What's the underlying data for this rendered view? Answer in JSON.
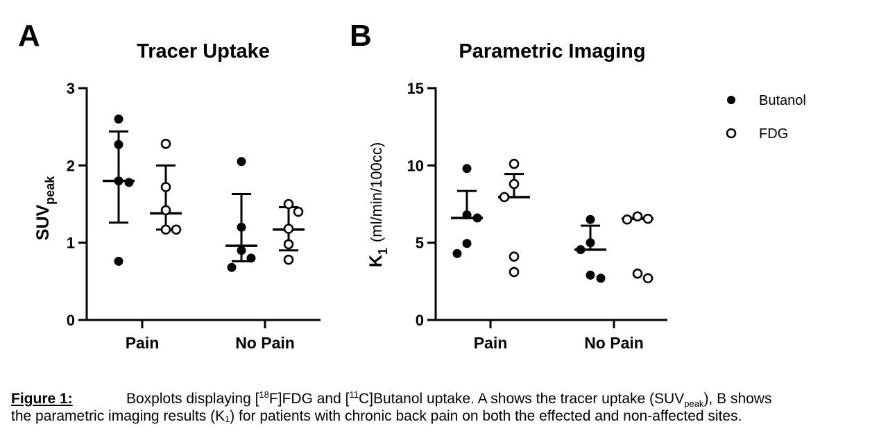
{
  "panels": [
    {
      "letter": "A",
      "title": "Tracer Uptake",
      "ylabel_main": "SUV",
      "ylabel_sub": "peak",
      "ylabel_unit": "",
      "yticks": [
        "0",
        "1",
        "2",
        "3"
      ],
      "categories": [
        "Pain",
        "No Pain"
      ]
    },
    {
      "letter": "B",
      "title": "Parametric Imaging",
      "ylabel_main": "K",
      "ylabel_sub": "1",
      "ylabel_unit": "(ml/min/100cc)",
      "yticks": [
        "0",
        "5",
        "10",
        "15"
      ],
      "categories": [
        "Pain",
        "No Pain"
      ]
    }
  ],
  "legend": {
    "butanol": "Butanol",
    "fdg": "FDG"
  },
  "caption": {
    "label": "Figure 1:",
    "t1": "Boxplots displaying [",
    "sup18": "18",
    "t2": "F]FDG and [",
    "sup11": "11",
    "t3": "C]Butanol",
    "t4": " uptake. A shows the tracer uptake (SUV",
    "sub_peak": "peak",
    "t5": "), B shows",
    "line2": "the parametric imaging results (K₁) for patients with chronic back pain on both the effected and non-affected sites."
  },
  "chart_data": [
    {
      "type": "scatter",
      "title": "Tracer Uptake",
      "ylabel": "SUVpeak",
      "ylim": [
        0,
        3
      ],
      "categories": [
        "Pain",
        "No Pain"
      ],
      "legend": "top-right",
      "series": [
        {
          "name": "Butanol",
          "marker": "filled",
          "groups": [
            {
              "category": "Pain",
              "points": [
                2.6,
                2.27,
                1.8,
                1.78,
                0.76
              ],
              "mean": 1.8,
              "error": [
                1.26,
                2.44
              ]
            },
            {
              "category": "No Pain",
              "points": [
                2.05,
                1.2,
                0.9,
                0.8,
                0.68
              ],
              "mean": 0.96,
              "error": [
                0.76,
                1.63
              ]
            }
          ]
        },
        {
          "name": "FDG",
          "marker": "open",
          "groups": [
            {
              "category": "Pain",
              "points": [
                2.28,
                1.72,
                1.42,
                1.17,
                1.17
              ],
              "mean": 1.38,
              "error": [
                1.17,
                2.0
              ]
            },
            {
              "category": "No Pain",
              "points": [
                1.5,
                1.4,
                1.18,
                0.98,
                0.78
              ],
              "mean": 1.17,
              "error": [
                0.9,
                1.46
              ]
            }
          ]
        }
      ]
    },
    {
      "type": "scatter",
      "title": "Parametric Imaging",
      "ylabel": "K1 (ml/min/100cc)",
      "ylim": [
        0,
        15
      ],
      "categories": [
        "Pain",
        "No Pain"
      ],
      "legend": "top-right",
      "series": [
        {
          "name": "Butanol",
          "marker": "filled",
          "groups": [
            {
              "category": "Pain",
              "points": [
                9.8,
                6.8,
                6.6,
                4.95,
                4.3
              ],
              "mean": 6.6,
              "error": [
                6.6,
                8.35
              ]
            },
            {
              "category": "No Pain",
              "points": [
                6.5,
                5.0,
                4.55,
                2.9,
                2.7
              ],
              "mean": 4.55,
              "error": [
                4.55,
                6.1
              ]
            }
          ]
        },
        {
          "name": "FDG",
          "marker": "open",
          "groups": [
            {
              "category": "Pain",
              "points": [
                10.1,
                8.8,
                7.95,
                4.1,
                3.1
              ],
              "mean": 7.95,
              "error": [
                7.95,
                9.45
              ]
            },
            {
              "category": "No Pain",
              "points": [
                6.7,
                6.5,
                6.55,
                3.0,
                2.7
              ],
              "mean": 6.55,
              "error": [
                6.55,
                6.6
              ]
            }
          ]
        }
      ]
    }
  ]
}
